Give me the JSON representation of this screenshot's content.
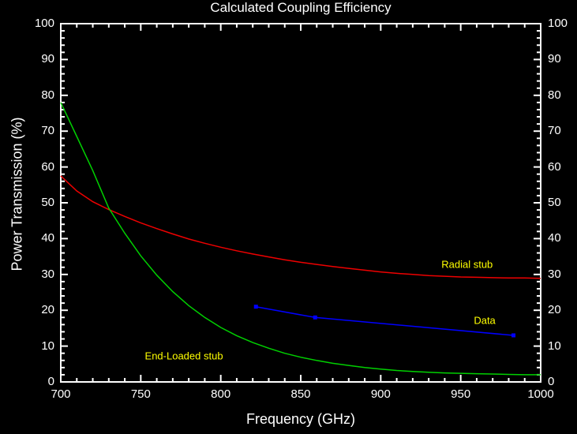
{
  "chart_data": {
    "type": "line",
    "title": "Calculated Coupling Efficiency",
    "xlabel": "Frequency (GHz)",
    "ylabel": "Power Transmission (%)",
    "xlim": [
      700,
      1000
    ],
    "ylim": [
      0,
      100
    ],
    "x_major_ticks": [
      700,
      750,
      800,
      850,
      900,
      950,
      1000
    ],
    "x_minor_step": 10,
    "y_major_ticks": [
      0,
      10,
      20,
      30,
      40,
      50,
      60,
      70,
      80,
      90,
      100
    ],
    "y_minor_step": 2,
    "grid": false,
    "legend_position": "none",
    "background_color": "#000000",
    "frame_color": "#ffffff",
    "text_color": "#ffffff",
    "annotation_color": "#ffff00",
    "series": [
      {
        "name": "Radial stub",
        "color": "#ee0000",
        "marker": "none",
        "points": [
          [
            700,
            57.5
          ],
          [
            710,
            53.3
          ],
          [
            720,
            50.3
          ],
          [
            730,
            48.1
          ],
          [
            740,
            46.2
          ],
          [
            750,
            44.4
          ],
          [
            760,
            42.8
          ],
          [
            770,
            41.3
          ],
          [
            780,
            39.9
          ],
          [
            790,
            38.7
          ],
          [
            800,
            37.6
          ],
          [
            810,
            36.6
          ],
          [
            820,
            35.7
          ],
          [
            830,
            34.9
          ],
          [
            840,
            34.1
          ],
          [
            850,
            33.4
          ],
          [
            860,
            32.8
          ],
          [
            870,
            32.2
          ],
          [
            880,
            31.7
          ],
          [
            890,
            31.2
          ],
          [
            900,
            30.7
          ],
          [
            910,
            30.3
          ],
          [
            920,
            30.0
          ],
          [
            930,
            29.7
          ],
          [
            940,
            29.5
          ],
          [
            950,
            29.3
          ],
          [
            960,
            29.2
          ],
          [
            970,
            29.1
          ],
          [
            980,
            29.0
          ],
          [
            990,
            29.0
          ],
          [
            1000,
            28.9
          ]
        ]
      },
      {
        "name": "End-Loaded stub",
        "color": "#00d000",
        "marker": "none",
        "points": [
          [
            700,
            78.0
          ],
          [
            710,
            68.5
          ],
          [
            720,
            59.0
          ],
          [
            730,
            48.5
          ],
          [
            740,
            41.5
          ],
          [
            750,
            35.2
          ],
          [
            760,
            29.8
          ],
          [
            770,
            25.2
          ],
          [
            780,
            21.3
          ],
          [
            790,
            18.0
          ],
          [
            800,
            15.2
          ],
          [
            810,
            12.9
          ],
          [
            820,
            11.0
          ],
          [
            830,
            9.4
          ],
          [
            840,
            8.0
          ],
          [
            850,
            6.9
          ],
          [
            860,
            6.0
          ],
          [
            870,
            5.2
          ],
          [
            880,
            4.6
          ],
          [
            890,
            4.0
          ],
          [
            900,
            3.6
          ],
          [
            910,
            3.2
          ],
          [
            920,
            2.9
          ],
          [
            930,
            2.7
          ],
          [
            940,
            2.5
          ],
          [
            950,
            2.4
          ],
          [
            960,
            2.3
          ],
          [
            970,
            2.2
          ],
          [
            980,
            2.1
          ],
          [
            990,
            2.0
          ],
          [
            1000,
            2.0
          ]
        ]
      },
      {
        "name": "Data",
        "color": "#0000ff",
        "marker": "square",
        "marker_size": 5,
        "points": [
          [
            822,
            21
          ],
          [
            859,
            18
          ],
          [
            983,
            13
          ]
        ]
      }
    ],
    "annotations": [
      {
        "text": "Radial stub",
        "x": 954,
        "y": 32.8,
        "color": "#ffff00"
      },
      {
        "text": "Data",
        "x": 965,
        "y": 17.2,
        "color": "#ffff00"
      },
      {
        "text": "End-Loaded stub",
        "x": 777,
        "y": 7.2,
        "color": "#ffff00"
      }
    ]
  }
}
